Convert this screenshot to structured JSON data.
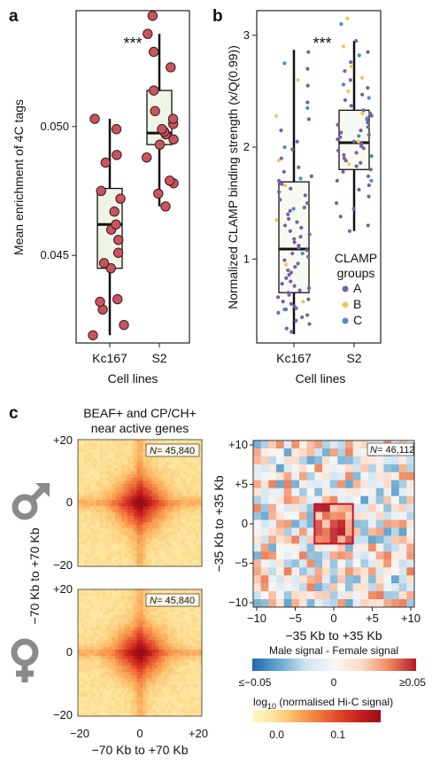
{
  "panels": {
    "a": "a",
    "b": "b",
    "c": "c"
  },
  "chart_data": [
    {
      "id": "a",
      "type": "box",
      "title": "",
      "xlabel": "Cell lines",
      "ylabel": "Mean enrichment of 4C tags",
      "categories": [
        "Kc167",
        "S2"
      ],
      "yticks": [
        "0.045",
        "0.050"
      ],
      "ytick_values": [
        0.045,
        0.05
      ],
      "ylim": [
        0.0416,
        0.0545
      ],
      "significance": "***",
      "boxes": [
        {
          "category": "Kc167",
          "whisker_low": 0.0419,
          "q1": 0.0445,
          "median": 0.0462,
          "q3": 0.0476,
          "whisker_high": 0.0503
        },
        {
          "category": "S2",
          "whisker_low": 0.0469,
          "q1": 0.0493,
          "median": 0.04975,
          "q3": 0.0514,
          "whisker_high": 0.0536
        }
      ],
      "points": [
        {
          "category": "Kc167",
          "values": [
            0.0419,
            0.0423,
            0.0429,
            0.0432,
            0.0433,
            0.0445,
            0.0447,
            0.0451,
            0.0456,
            0.046,
            0.0462,
            0.0467,
            0.0472,
            0.0475,
            0.0486,
            0.0489,
            0.0499,
            0.0503
          ]
        },
        {
          "category": "S2",
          "values": [
            0.0469,
            0.0474,
            0.0478,
            0.0479,
            0.0488,
            0.0493,
            0.0495,
            0.0497,
            0.0498,
            0.0499,
            0.0501,
            0.0503,
            0.0506,
            0.0514,
            0.0523,
            0.0529,
            0.0536,
            0.0543
          ]
        }
      ]
    },
    {
      "id": "b",
      "type": "box",
      "title": "",
      "xlabel": "Cell lines",
      "ylabel": "Normalized CLAMP binding strength (x/Q(0.99))",
      "categories": [
        "Kc167",
        "S2"
      ],
      "yticks": [
        "1",
        "2",
        "3"
      ],
      "ytick_values": [
        1,
        2,
        3
      ],
      "ylim": [
        0.25,
        3.22
      ],
      "significance": "***",
      "legend": {
        "title_line1": "CLAMP",
        "title_line2": "groups",
        "position": "right",
        "entries": [
          {
            "label": "A",
            "color": "#7b5ea7"
          },
          {
            "label": "B",
            "color": "#f1c65a"
          },
          {
            "label": "C",
            "color": "#4d8cc4"
          }
        ]
      },
      "boxes": [
        {
          "category": "Kc167",
          "whisker_low": 0.33,
          "q1": 0.7,
          "median": 1.09,
          "q3": 1.69,
          "whisker_high": 2.87
        },
        {
          "category": "S2",
          "whisker_low": 1.25,
          "q1": 1.8,
          "median": 2.04,
          "q3": 2.33,
          "whisker_high": 2.95
        }
      ],
      "point_groups": [
        {
          "category": "Kc167",
          "group": "A",
          "values": [
            0.35,
            0.38,
            0.42,
            0.45,
            0.48,
            0.5,
            0.52,
            0.55,
            0.56,
            0.58,
            0.6,
            0.62,
            0.64,
            0.66,
            0.68,
            0.7,
            0.72,
            0.74,
            0.76,
            0.78,
            0.8,
            0.83,
            0.86,
            0.88,
            0.9,
            0.93,
            0.96,
            0.99,
            1.02,
            1.05,
            1.08,
            1.1,
            1.12,
            1.15,
            1.18,
            1.2,
            1.22,
            1.25,
            1.28,
            1.3,
            1.33,
            1.36,
            1.4,
            1.43,
            1.46,
            1.5,
            1.53,
            1.57,
            1.6,
            1.63,
            1.67,
            1.7,
            1.74,
            1.78,
            1.82,
            1.9,
            1.98,
            2.05,
            2.15,
            2.25,
            2.4,
            2.55,
            2.7,
            2.85
          ]
        },
        {
          "category": "Kc167",
          "group": "B",
          "values": [
            0.62,
            0.95,
            1.35,
            1.66,
            1.88,
            2.28,
            2.6
          ]
        },
        {
          "category": "Kc167",
          "group": "C",
          "values": [
            0.55,
            1.05,
            1.45,
            1.72,
            2.0,
            2.35,
            2.75
          ]
        },
        {
          "category": "S2",
          "group": "A",
          "values": [
            1.25,
            1.3,
            1.38,
            1.45,
            1.5,
            1.56,
            1.62,
            1.66,
            1.7,
            1.74,
            1.78,
            1.8,
            1.83,
            1.86,
            1.88,
            1.9,
            1.93,
            1.95,
            1.97,
            1.99,
            2.01,
            2.03,
            2.05,
            2.07,
            2.09,
            2.11,
            2.13,
            2.15,
            2.18,
            2.2,
            2.22,
            2.25,
            2.28,
            2.3,
            2.33,
            2.37,
            2.42,
            2.47,
            2.53,
            2.6,
            2.68,
            2.76,
            2.85,
            2.95
          ]
        },
        {
          "category": "S2",
          "group": "B",
          "values": [
            1.85,
            2.05,
            2.3,
            2.5,
            2.62,
            2.72,
            2.9,
            3.15
          ]
        },
        {
          "category": "S2",
          "group": "C",
          "values": [
            1.7,
            1.92,
            2.1,
            2.26,
            2.44,
            2.56,
            2.82,
            3.1
          ]
        }
      ]
    },
    {
      "id": "c_heatmaps",
      "type": "heatmap",
      "title_line1": "BEAF+ and CP/CH+",
      "title_line2": "near active genes",
      "xlabel": "−70 Kb to +70 Kb",
      "ylabel": "−70 Kb to +70 Kb",
      "ticks": [
        "+20",
        "0",
        "−20"
      ],
      "xticks": [
        "−20",
        "0",
        "+20"
      ],
      "grid_size": 40,
      "maps": [
        {
          "sex": "male",
          "n_label": "N",
          "n_value": "= 45,840"
        },
        {
          "sex": "female",
          "n_label": "N",
          "n_value": "= 45,840"
        }
      ],
      "colorbar": {
        "label_prefix": "log",
        "label_sub": "10",
        "label_suffix": " (normalised Hi-C signal)",
        "ticks": [
          "0.0",
          "0.1"
        ],
        "tick_values": [
          0.0,
          0.1
        ],
        "range": [
          -0.04,
          0.17
        ],
        "colors": [
          "#fff6c6",
          "#fde49a",
          "#fbb462",
          "#f37e40",
          "#e04a2a",
          "#c81f1f",
          "#9c0e17"
        ]
      }
    },
    {
      "id": "c_difference",
      "type": "heatmap",
      "xlabel": "−35 Kb to +35 Kb",
      "ylabel": "−35 Kb to +35 Kb",
      "yticks": [
        "+10",
        "+5",
        "0",
        "−5",
        "−10"
      ],
      "xticks": [
        "−10",
        "−5",
        "0",
        "+5",
        "+10"
      ],
      "grid_size": 21,
      "n_label": "N",
      "n_value": "= 46,112",
      "colorbar": {
        "title": "Male signal - Female signal",
        "ticks": [
          "≤−0.05",
          "0",
          "≥0.05"
        ],
        "tick_values": [
          -0.05,
          0,
          0.05
        ],
        "colors": [
          "#2166ac",
          "#67a9cf",
          "#d1e5f0",
          "#f7f7f7",
          "#fddbc7",
          "#ef8a62",
          "#b2182b"
        ]
      }
    }
  ],
  "symbols": {
    "male": "male-symbol-icon",
    "female": "female-symbol-icon"
  }
}
